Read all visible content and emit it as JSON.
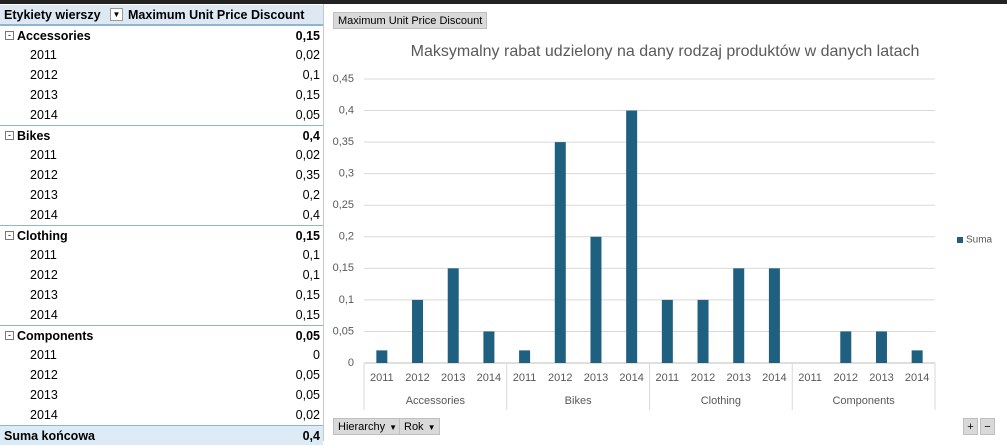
{
  "pivot_table": {
    "header": [
      "Etykiety wierszy",
      "Maximum Unit Price Discount"
    ],
    "groups": [
      {
        "name": "Accessories",
        "total": "0,15",
        "rows": [
          {
            "year": "2011",
            "value": "0,02"
          },
          {
            "year": "2012",
            "value": "0,1"
          },
          {
            "year": "2013",
            "value": "0,15"
          },
          {
            "year": "2014",
            "value": "0,05"
          }
        ]
      },
      {
        "name": "Bikes",
        "total": "0,4",
        "rows": [
          {
            "year": "2011",
            "value": "0,02"
          },
          {
            "year": "2012",
            "value": "0,35"
          },
          {
            "year": "2013",
            "value": "0,2"
          },
          {
            "year": "2014",
            "value": "0,4"
          }
        ]
      },
      {
        "name": "Clothing",
        "total": "0,15",
        "rows": [
          {
            "year": "2011",
            "value": "0,1"
          },
          {
            "year": "2012",
            "value": "0,1"
          },
          {
            "year": "2013",
            "value": "0,15"
          },
          {
            "year": "2014",
            "value": "0,15"
          }
        ]
      },
      {
        "name": "Components",
        "total": "0,05",
        "rows": [
          {
            "year": "2011",
            "value": "0"
          },
          {
            "year": "2012",
            "value": "0,05"
          },
          {
            "year": "2013",
            "value": "0,05"
          },
          {
            "year": "2014",
            "value": "0,02"
          }
        ]
      }
    ],
    "grand_total": {
      "label": "Suma końcowa",
      "value": "0,4"
    }
  },
  "field_buttons": {
    "value_field": "Maximum Unit Price Discount",
    "axis_fields": [
      "Hierarchy",
      "Rok"
    ]
  },
  "chart_data": {
    "type": "bar",
    "title": "Maksymalny rabat udzielony na dany rodzaj produktów w danych latach",
    "categories": [
      "2011",
      "2012",
      "2013",
      "2014",
      "2011",
      "2012",
      "2013",
      "2014",
      "2011",
      "2012",
      "2013",
      "2014",
      "2011",
      "2012",
      "2013",
      "2014"
    ],
    "groups": [
      "Accessories",
      "Bikes",
      "Clothing",
      "Components"
    ],
    "series": [
      {
        "name": "Suma",
        "color": "#1f5f7f",
        "values": [
          0.02,
          0.1,
          0.15,
          0.05,
          0.02,
          0.35,
          0.2,
          0.4,
          0.1,
          0.1,
          0.15,
          0.15,
          0,
          0.05,
          0.05,
          0.02
        ]
      }
    ],
    "ylim": [
      0,
      0.45
    ],
    "yticks": [
      0,
      {
        "value": 0.05,
        "label": "0,05"
      },
      {
        "value": 0.1,
        "label": "0,1"
      },
      {
        "value": 0.15,
        "label": "0,15"
      },
      {
        "value": 0.2,
        "label": "0,2"
      },
      {
        "value": 0.25,
        "label": "0,25"
      },
      {
        "value": 0.3,
        "label": "0,3"
      },
      {
        "value": 0.35,
        "label": "0,35"
      },
      {
        "value": 0.4,
        "label": "0,4"
      },
      {
        "value": 0.45,
        "label": "0,45"
      }
    ],
    "grid": true,
    "legend": "right"
  }
}
